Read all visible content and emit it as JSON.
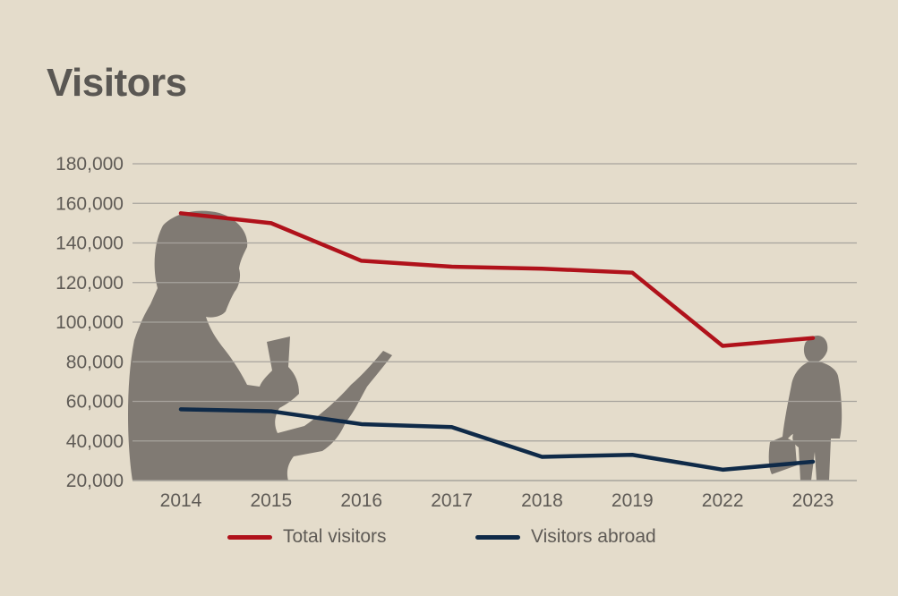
{
  "chart_data": {
    "type": "line",
    "title": "Visitors",
    "categories": [
      "2014",
      "2015",
      "2016",
      "2017",
      "2018",
      "2019",
      "2022",
      "2023"
    ],
    "series": [
      {
        "name": "Total visitors",
        "color": "#b0121b",
        "values": [
          155000,
          150000,
          131000,
          128000,
          127000,
          125000,
          88000,
          92000
        ]
      },
      {
        "name": "Visitors abroad",
        "color": "#0f2a48",
        "values": [
          56000,
          55000,
          48500,
          47000,
          32000,
          33000,
          25500,
          29500
        ]
      }
    ],
    "y_ticks": [
      "20,000",
      "40,000",
      "60,000",
      "80,000",
      "100,000",
      "120,000",
      "140,000",
      "160,000",
      "180,000"
    ],
    "ylim": [
      20000,
      180000
    ],
    "grid": true,
    "legend_position": "bottom",
    "gridline_color": "#a7a39d",
    "silhouette_color": "#807a73"
  }
}
